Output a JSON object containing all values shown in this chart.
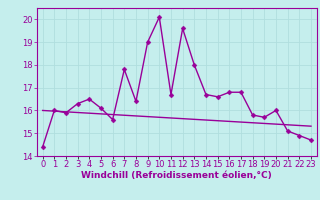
{
  "xlabel": "Windchill (Refroidissement éolien,°C)",
  "background_color": "#c5eeed",
  "line_color": "#990099",
  "grid_color": "#b0dede",
  "x_values": [
    0,
    1,
    2,
    3,
    4,
    5,
    6,
    7,
    8,
    9,
    10,
    11,
    12,
    13,
    14,
    15,
    16,
    17,
    18,
    19,
    20,
    21,
    22,
    23
  ],
  "y_main": [
    14.4,
    16.0,
    15.9,
    16.3,
    16.5,
    16.1,
    15.6,
    17.8,
    16.4,
    19.0,
    20.1,
    16.7,
    19.6,
    18.0,
    16.7,
    16.6,
    16.8,
    16.8,
    15.8,
    15.7,
    16.0,
    15.1,
    14.9,
    14.7
  ],
  "y_trend": [
    16.0,
    15.97,
    15.94,
    15.91,
    15.88,
    15.85,
    15.82,
    15.79,
    15.76,
    15.73,
    15.7,
    15.67,
    15.64,
    15.61,
    15.58,
    15.55,
    15.52,
    15.49,
    15.46,
    15.43,
    15.4,
    15.37,
    15.34,
    15.31
  ],
  "ylim": [
    14.0,
    20.5
  ],
  "yticks": [
    14,
    15,
    16,
    17,
    18,
    19,
    20
  ],
  "xlim": [
    -0.5,
    23.5
  ],
  "xtick_labels": [
    "0",
    "1",
    "2",
    "3",
    "4",
    "5",
    "6",
    "7",
    "8",
    "9",
    "10",
    "11",
    "12",
    "13",
    "14",
    "15",
    "16",
    "17",
    "18",
    "19",
    "20",
    "21",
    "22",
    "23"
  ],
  "fontsize_label": 6.5,
  "fontsize_tick": 6,
  "linewidth": 1.0,
  "markersize": 2.5
}
